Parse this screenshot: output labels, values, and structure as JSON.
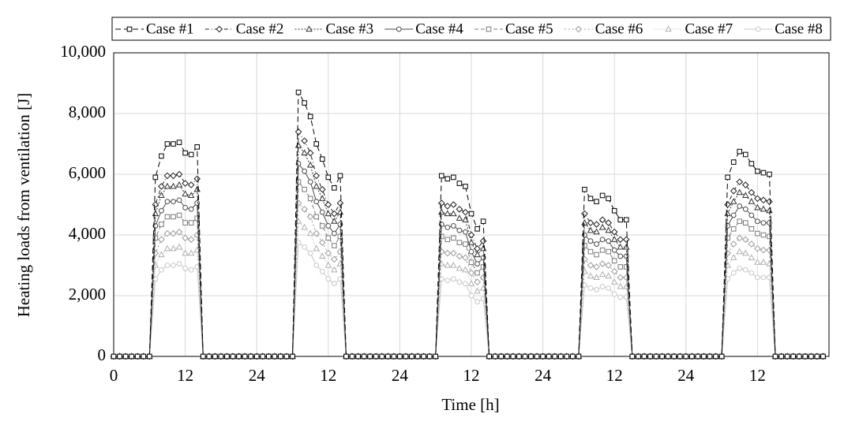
{
  "chart_data": {
    "type": "line",
    "x_label": "Time [h]",
    "y_label": "Heating loads from ventilation [J]",
    "xlim": [
      0,
      120
    ],
    "xticks": [
      0,
      12,
      24,
      {
        "value": 36,
        "label": "12"
      },
      {
        "value": 48,
        "label": "24"
      },
      {
        "value": 60,
        "label": "12"
      },
      {
        "value": 72,
        "label": "24"
      },
      {
        "value": 84,
        "label": "12"
      },
      {
        "value": 96,
        "label": "24"
      },
      {
        "value": 108,
        "label": "12"
      }
    ],
    "ylim": [
      0,
      10000
    ],
    "yticks": [
      0,
      {
        "value": 2000,
        "label": "2,000"
      },
      {
        "value": 4000,
        "label": "4,000"
      },
      {
        "value": 6000,
        "label": "6,000"
      },
      {
        "value": 8000,
        "label": "8,000"
      },
      {
        "value": 10000,
        "label": "10,000"
      }
    ],
    "grid": true,
    "legend": "top",
    "x": [
      0,
      1,
      2,
      3,
      4,
      5,
      6,
      7,
      8,
      9,
      10,
      11,
      12,
      13,
      14,
      15,
      16,
      17,
      18,
      19,
      20,
      21,
      22,
      23,
      24,
      25,
      26,
      27,
      28,
      29,
      30,
      31,
      32,
      33,
      34,
      35,
      36,
      37,
      38,
      39,
      40,
      41,
      42,
      43,
      44,
      45,
      46,
      47,
      48,
      49,
      50,
      51,
      52,
      53,
      54,
      55,
      56,
      57,
      58,
      59,
      60,
      61,
      62,
      63,
      64,
      65,
      66,
      67,
      68,
      69,
      70,
      71,
      72,
      73,
      74,
      75,
      76,
      77,
      78,
      79,
      80,
      81,
      82,
      83,
      84,
      85,
      86,
      87,
      88,
      89,
      90,
      91,
      92,
      93,
      94,
      95,
      96,
      97,
      98,
      99,
      100,
      101,
      102,
      103,
      104,
      105,
      106,
      107,
      108,
      109,
      110,
      111,
      112,
      113,
      114,
      115,
      116,
      117,
      118,
      119
    ],
    "series": [
      {
        "name": "Case #1",
        "color": "#000000",
        "marker": "square",
        "values": [
          0,
          0,
          0,
          0,
          0,
          0,
          0,
          5900,
          6600,
          7000,
          7000,
          7050,
          6700,
          6650,
          6900,
          0,
          0,
          0,
          0,
          0,
          0,
          0,
          0,
          0,
          0,
          0,
          0,
          0,
          0,
          0,
          0,
          8700,
          8350,
          7900,
          7000,
          6500,
          5900,
          5550,
          5950,
          0,
          0,
          0,
          0,
          0,
          0,
          0,
          0,
          0,
          0,
          0,
          0,
          0,
          0,
          0,
          0,
          5950,
          5850,
          5900,
          5700,
          5600,
          4700,
          4200,
          4450,
          0,
          0,
          0,
          0,
          0,
          0,
          0,
          0,
          0,
          0,
          0,
          0,
          0,
          0,
          0,
          0,
          5500,
          5200,
          5100,
          5300,
          5200,
          4800,
          4500,
          4500,
          0,
          0,
          0,
          0,
          0,
          0,
          0,
          0,
          0,
          0,
          0,
          0,
          0,
          0,
          0,
          0,
          5900,
          6400,
          6750,
          6650,
          6350,
          6100,
          6050,
          6000,
          0,
          0,
          0,
          0,
          0,
          0,
          0,
          0,
          0
        ]
      },
      {
        "name": "Case #2",
        "color": "#1e1e1e",
        "marker": "diamond",
        "values": [
          0,
          0,
          0,
          0,
          0,
          0,
          0,
          5000,
          5600,
          5950,
          5950,
          6000,
          5700,
          5650,
          5850,
          0,
          0,
          0,
          0,
          0,
          0,
          0,
          0,
          0,
          0,
          0,
          0,
          0,
          0,
          0,
          0,
          7400,
          7100,
          6700,
          5950,
          5500,
          5000,
          4700,
          5050,
          0,
          0,
          0,
          0,
          0,
          0,
          0,
          0,
          0,
          0,
          0,
          0,
          0,
          0,
          0,
          0,
          5050,
          4950,
          5000,
          4850,
          4750,
          4000,
          3550,
          3800,
          0,
          0,
          0,
          0,
          0,
          0,
          0,
          0,
          0,
          0,
          0,
          0,
          0,
          0,
          0,
          0,
          4700,
          4400,
          4350,
          4500,
          4400,
          4100,
          3850,
          3850,
          0,
          0,
          0,
          0,
          0,
          0,
          0,
          0,
          0,
          0,
          0,
          0,
          0,
          0,
          0,
          0,
          5000,
          5450,
          5750,
          5650,
          5400,
          5200,
          5150,
          5100,
          0,
          0,
          0,
          0,
          0,
          0,
          0,
          0,
          0
        ]
      },
      {
        "name": "Case #3",
        "color": "#333333",
        "marker": "triangle",
        "values": [
          0,
          0,
          0,
          0,
          0,
          0,
          0,
          4700,
          5300,
          5600,
          5600,
          5650,
          5350,
          5300,
          5500,
          0,
          0,
          0,
          0,
          0,
          0,
          0,
          0,
          0,
          0,
          0,
          0,
          0,
          0,
          0,
          0,
          6950,
          6700,
          6300,
          5600,
          5200,
          4700,
          4450,
          4750,
          0,
          0,
          0,
          0,
          0,
          0,
          0,
          0,
          0,
          0,
          0,
          0,
          0,
          0,
          0,
          0,
          4750,
          4700,
          4700,
          4550,
          4500,
          3750,
          3350,
          3550,
          0,
          0,
          0,
          0,
          0,
          0,
          0,
          0,
          0,
          0,
          0,
          0,
          0,
          0,
          0,
          0,
          4400,
          4150,
          4100,
          4250,
          4150,
          3850,
          3600,
          3600,
          0,
          0,
          0,
          0,
          0,
          0,
          0,
          0,
          0,
          0,
          0,
          0,
          0,
          0,
          0,
          0,
          4700,
          5100,
          5400,
          5300,
          5100,
          4900,
          4850,
          4800,
          0,
          0,
          0,
          0,
          0,
          0,
          0,
          0,
          0
        ]
      },
      {
        "name": "Case #4",
        "color": "#4a4a4a",
        "marker": "circle",
        "values": [
          0,
          0,
          0,
          0,
          0,
          0,
          0,
          4300,
          4800,
          5100,
          5100,
          5150,
          4900,
          4850,
          5050,
          0,
          0,
          0,
          0,
          0,
          0,
          0,
          0,
          0,
          0,
          0,
          0,
          0,
          0,
          0,
          0,
          6350,
          6100,
          5750,
          5100,
          4750,
          4300,
          4050,
          4350,
          0,
          0,
          0,
          0,
          0,
          0,
          0,
          0,
          0,
          0,
          0,
          0,
          0,
          0,
          0,
          0,
          4350,
          4250,
          4300,
          4150,
          4100,
          3450,
          3050,
          3250,
          0,
          0,
          0,
          0,
          0,
          0,
          0,
          0,
          0,
          0,
          0,
          0,
          0,
          0,
          0,
          0,
          4000,
          3800,
          3700,
          3850,
          3800,
          3500,
          3300,
          3300,
          0,
          0,
          0,
          0,
          0,
          0,
          0,
          0,
          0,
          0,
          0,
          0,
          0,
          0,
          0,
          0,
          4300,
          4650,
          4950,
          4850,
          4650,
          4450,
          4400,
          4400,
          0,
          0,
          0,
          0,
          0,
          0,
          0,
          0,
          0
        ]
      },
      {
        "name": "Case #5",
        "color": "#7a7a7a",
        "marker": "square",
        "values": [
          0,
          0,
          0,
          0,
          0,
          0,
          0,
          3900,
          4350,
          4600,
          4600,
          4650,
          4400,
          4400,
          4550,
          0,
          0,
          0,
          0,
          0,
          0,
          0,
          0,
          0,
          0,
          0,
          0,
          0,
          0,
          0,
          0,
          5750,
          5500,
          5200,
          4600,
          4300,
          3900,
          3650,
          3950,
          0,
          0,
          0,
          0,
          0,
          0,
          0,
          0,
          0,
          0,
          0,
          0,
          0,
          0,
          0,
          0,
          3950,
          3850,
          3900,
          3750,
          3700,
          3100,
          2750,
          2950,
          0,
          0,
          0,
          0,
          0,
          0,
          0,
          0,
          0,
          0,
          0,
          0,
          0,
          0,
          0,
          0,
          3650,
          3450,
          3350,
          3500,
          3450,
          3150,
          2950,
          2950,
          0,
          0,
          0,
          0,
          0,
          0,
          0,
          0,
          0,
          0,
          0,
          0,
          0,
          0,
          0,
          0,
          3900,
          4200,
          4450,
          4400,
          4200,
          4050,
          4000,
          3950,
          0,
          0,
          0,
          0,
          0,
          0,
          0,
          0,
          0
        ]
      },
      {
        "name": "Case #6",
        "color": "#9a9a9a",
        "marker": "diamond",
        "values": [
          0,
          0,
          0,
          0,
          0,
          0,
          0,
          3400,
          3850,
          4050,
          4050,
          4100,
          3900,
          3850,
          4000,
          0,
          0,
          0,
          0,
          0,
          0,
          0,
          0,
          0,
          0,
          0,
          0,
          0,
          0,
          0,
          0,
          5050,
          4850,
          4600,
          4050,
          3750,
          3400,
          3200,
          3450,
          0,
          0,
          0,
          0,
          0,
          0,
          0,
          0,
          0,
          0,
          0,
          0,
          0,
          0,
          0,
          0,
          3450,
          3400,
          3400,
          3300,
          3250,
          2750,
          2450,
          2600,
          0,
          0,
          0,
          0,
          0,
          0,
          0,
          0,
          0,
          0,
          0,
          0,
          0,
          0,
          0,
          0,
          3200,
          3000,
          2950,
          3050,
          3000,
          2800,
          2600,
          2600,
          0,
          0,
          0,
          0,
          0,
          0,
          0,
          0,
          0,
          0,
          0,
          0,
          0,
          0,
          0,
          0,
          3400,
          3700,
          3900,
          3850,
          3700,
          3550,
          3500,
          3500,
          0,
          0,
          0,
          0,
          0,
          0,
          0,
          0,
          0
        ]
      },
      {
        "name": "Case #7",
        "color": "#b0b0b0",
        "marker": "triangle",
        "values": [
          0,
          0,
          0,
          0,
          0,
          0,
          0,
          3000,
          3350,
          3550,
          3550,
          3600,
          3400,
          3400,
          3500,
          0,
          0,
          0,
          0,
          0,
          0,
          0,
          0,
          0,
          0,
          0,
          0,
          0,
          0,
          0,
          0,
          4450,
          4250,
          4050,
          3550,
          3300,
          3000,
          2850,
          3050,
          0,
          0,
          0,
          0,
          0,
          0,
          0,
          0,
          0,
          0,
          0,
          0,
          0,
          0,
          0,
          0,
          3050,
          3000,
          3000,
          2900,
          2850,
          2400,
          2150,
          2250,
          0,
          0,
          0,
          0,
          0,
          0,
          0,
          0,
          0,
          0,
          0,
          0,
          0,
          0,
          0,
          0,
          2800,
          2650,
          2600,
          2700,
          2650,
          2450,
          2300,
          2300,
          0,
          0,
          0,
          0,
          0,
          0,
          0,
          0,
          0,
          0,
          0,
          0,
          0,
          0,
          0,
          0,
          3000,
          3250,
          3450,
          3400,
          3250,
          3100,
          3100,
          3050,
          0,
          0,
          0,
          0,
          0,
          0,
          0,
          0,
          0
        ]
      },
      {
        "name": "Case #8",
        "color": "#c8c8c8",
        "marker": "circle",
        "values": [
          0,
          0,
          0,
          0,
          0,
          0,
          0,
          2550,
          2850,
          3000,
          3000,
          3050,
          2900,
          2850,
          2950,
          0,
          0,
          0,
          0,
          0,
          0,
          0,
          0,
          0,
          0,
          0,
          0,
          0,
          0,
          0,
          0,
          3750,
          3600,
          3400,
          3000,
          2800,
          2550,
          2400,
          2550,
          0,
          0,
          0,
          0,
          0,
          0,
          0,
          0,
          0,
          0,
          0,
          0,
          0,
          0,
          0,
          0,
          2550,
          2500,
          2550,
          2450,
          2400,
          2000,
          1800,
          1900,
          0,
          0,
          0,
          0,
          0,
          0,
          0,
          0,
          0,
          0,
          0,
          0,
          0,
          0,
          0,
          0,
          2350,
          2250,
          2200,
          2300,
          2250,
          2050,
          1950,
          1950,
          0,
          0,
          0,
          0,
          0,
          0,
          0,
          0,
          0,
          0,
          0,
          0,
          0,
          0,
          0,
          0,
          2550,
          2750,
          2900,
          2850,
          2750,
          2600,
          2600,
          2600,
          0,
          0,
          0,
          0,
          0,
          0,
          0,
          0,
          0
        ]
      }
    ]
  }
}
